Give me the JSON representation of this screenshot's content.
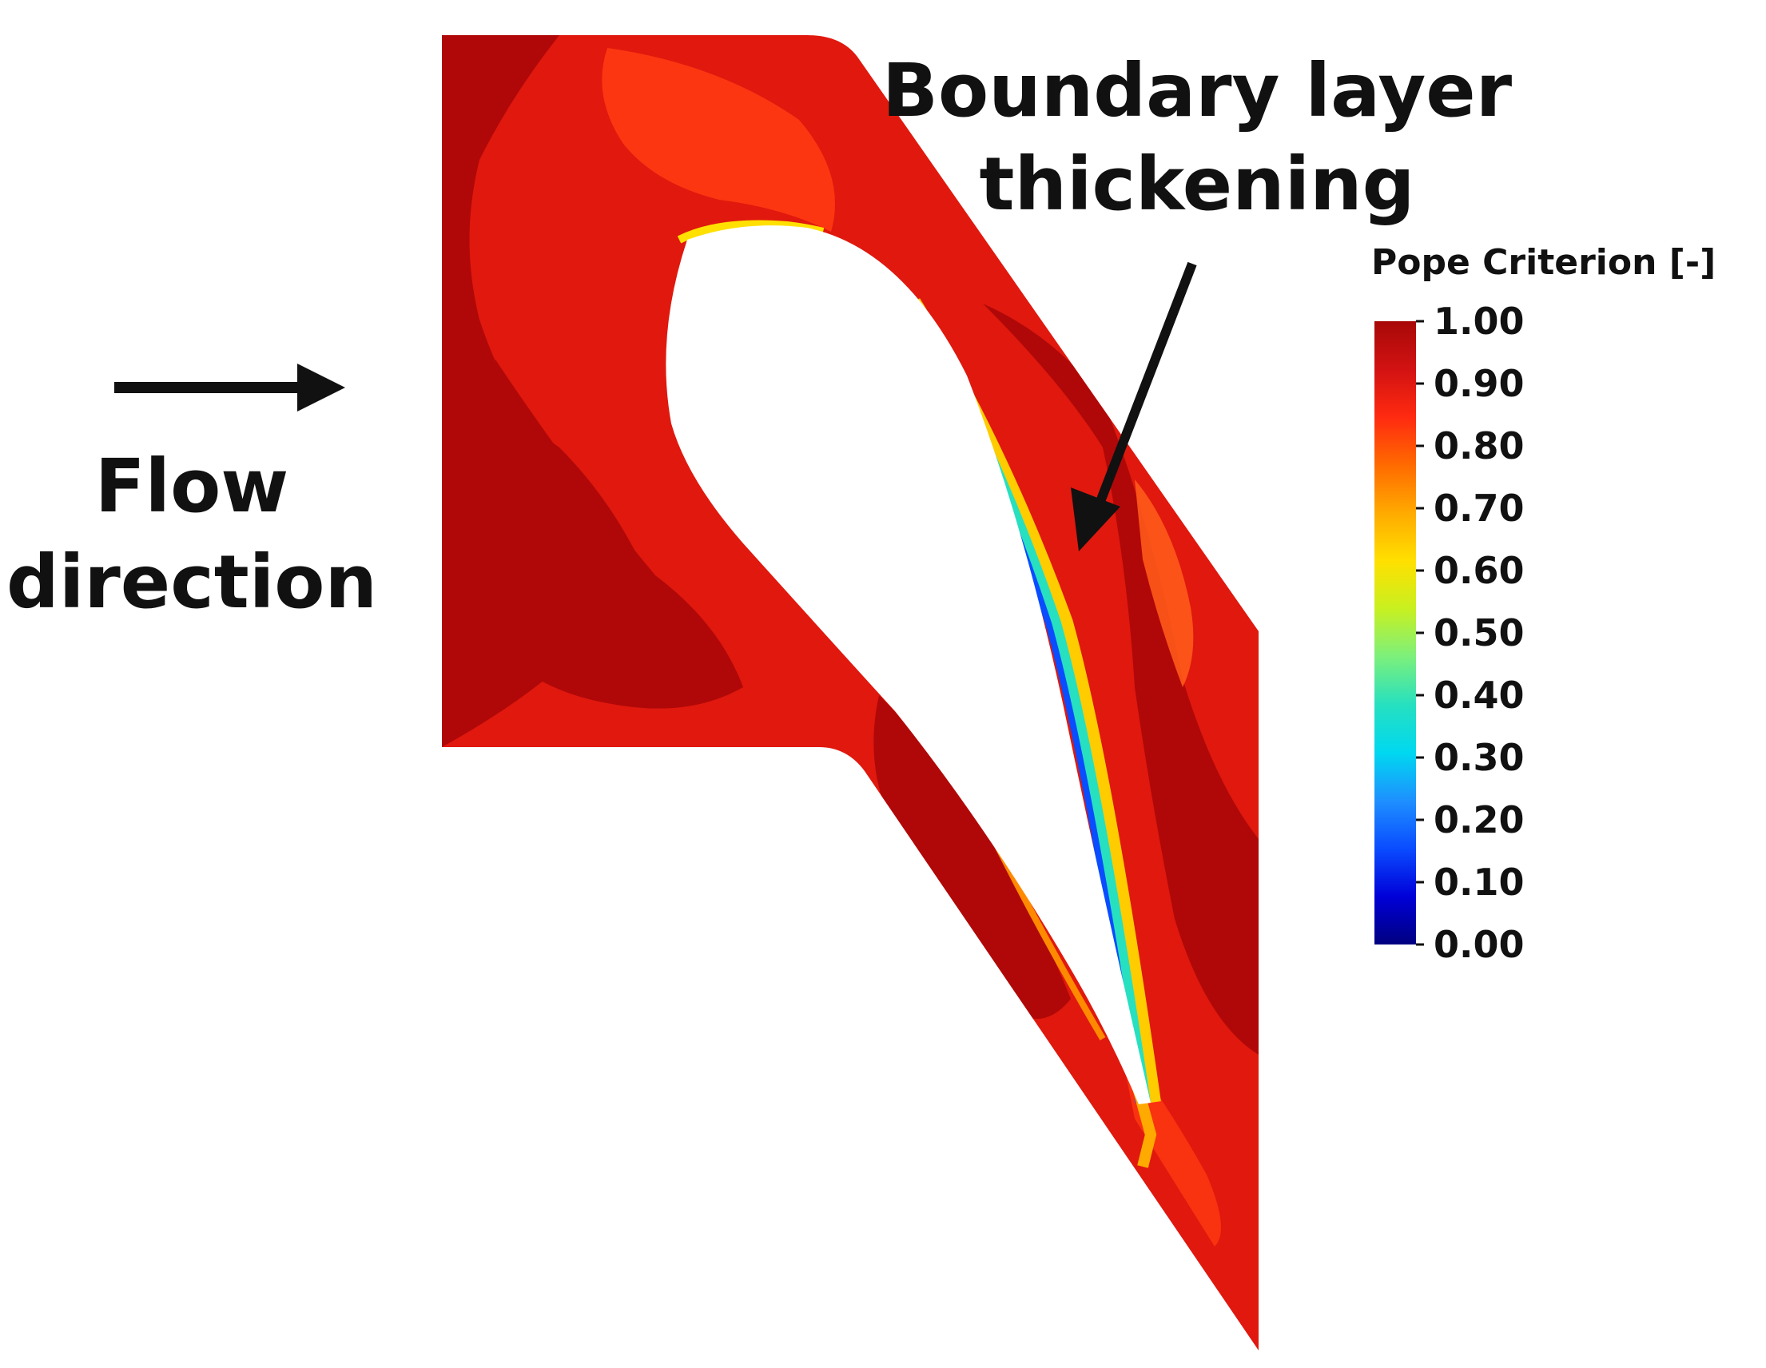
{
  "annotations": {
    "boundary_line1": "Boundary layer",
    "boundary_line2": "thickening",
    "flow_line1": "Flow",
    "flow_line2": "direction"
  },
  "legend": {
    "title": "Pope Criterion [-]",
    "min": 0.0,
    "max": 1.0,
    "ticks": [
      "1.00",
      "0.90",
      "0.80",
      "0.70",
      "0.60",
      "0.50",
      "0.40",
      "0.30",
      "0.20",
      "0.10",
      "0.00"
    ],
    "colors": [
      "#000080",
      "#0000d8",
      "#0a4cff",
      "#1e90ff",
      "#00d8f0",
      "#26e0c0",
      "#7cf07c",
      "#c8f020",
      "#ffe000",
      "#ffaa00",
      "#ff6a00",
      "#ff2a10",
      "#d21212",
      "#a80808"
    ]
  },
  "colors": {
    "field_main": "#e0180e",
    "field_dark": "#b00808",
    "field_light": "#ff3a12",
    "blade": "#ffffff",
    "arrow": "#111111"
  }
}
